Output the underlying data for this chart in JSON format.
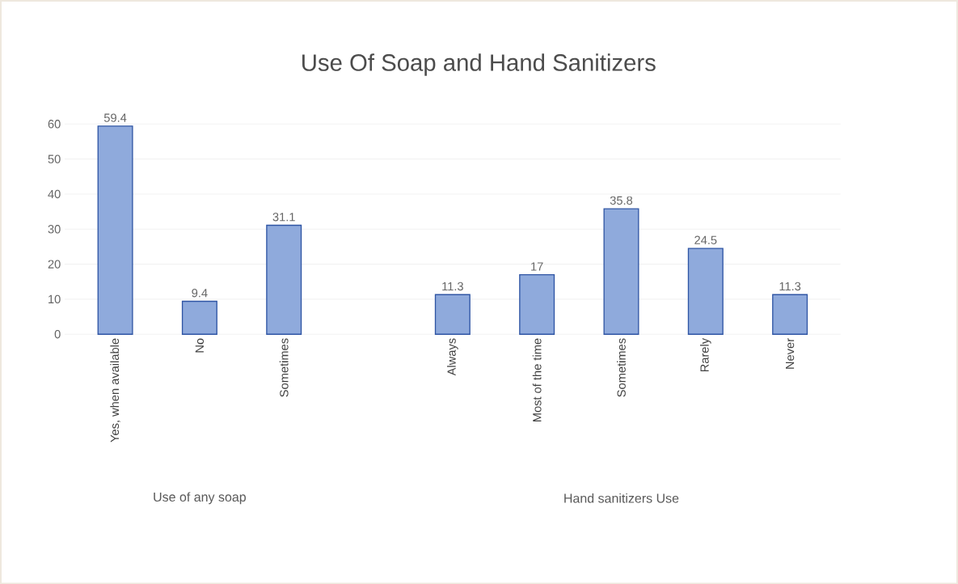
{
  "chart_data": {
    "type": "bar",
    "title": "Use Of Soap and Hand Sanitizers",
    "categories": [
      "Yes, when available",
      "No",
      "Sometimes",
      null,
      "Always",
      "Most of the time",
      "Sometimes",
      "Rarely",
      "Never"
    ],
    "values": [
      59.4,
      9.4,
      31.1,
      null,
      11.3,
      17,
      35.8,
      24.5,
      11.3
    ],
    "color": "#8faadc",
    "ylim": [
      0,
      60
    ],
    "yticks": [
      0,
      10,
      20,
      30,
      40,
      50,
      60
    ],
    "grid": "y",
    "data_labels": true,
    "annotations": [
      "Use of any soap",
      "Hand sanitizers Use"
    ]
  }
}
